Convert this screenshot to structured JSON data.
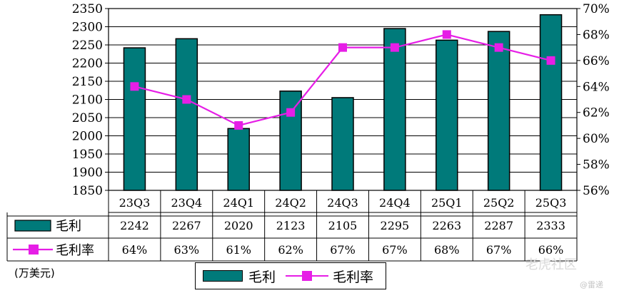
{
  "chart_data": {
    "type": "bar",
    "categories": [
      "23Q3",
      "23Q4",
      "24Q1",
      "24Q2",
      "24Q3",
      "24Q4",
      "25Q1",
      "25Q2",
      "25Q3"
    ],
    "series": [
      {
        "name": "毛利",
        "type": "bar",
        "axis": "left",
        "values": [
          2242,
          2267,
          2020,
          2123,
          2105,
          2295,
          2263,
          2287,
          2333
        ]
      },
      {
        "name": "毛利率",
        "type": "line",
        "axis": "right",
        "values": [
          64,
          63,
          61,
          62,
          67,
          67,
          68,
          67,
          66
        ]
      }
    ],
    "table_rows": [
      {
        "label": "毛利",
        "cells": [
          "2242",
          "2267",
          "2020",
          "2123",
          "2105",
          "2295",
          "2263",
          "2287",
          "2333"
        ]
      },
      {
        "label": "毛利率",
        "cells": [
          "64%",
          "63%",
          "61%",
          "62%",
          "67%",
          "67%",
          "68%",
          "67%",
          "66%"
        ]
      }
    ],
    "y_left": {
      "min": 1850,
      "max": 2350,
      "step": 50
    },
    "y_right": {
      "min": 56,
      "max": 70,
      "step": 2,
      "suffix": "%"
    },
    "unit_label": "(万美元)",
    "legend": {
      "bar_label": "毛利",
      "line_label": "毛利率",
      "placement": "bottom"
    },
    "colors": {
      "bar": "#007a7a",
      "line": "#e61ee6"
    },
    "grid": true
  },
  "watermark": {
    "brand": "老虎社区",
    "author": "@雷递"
  }
}
